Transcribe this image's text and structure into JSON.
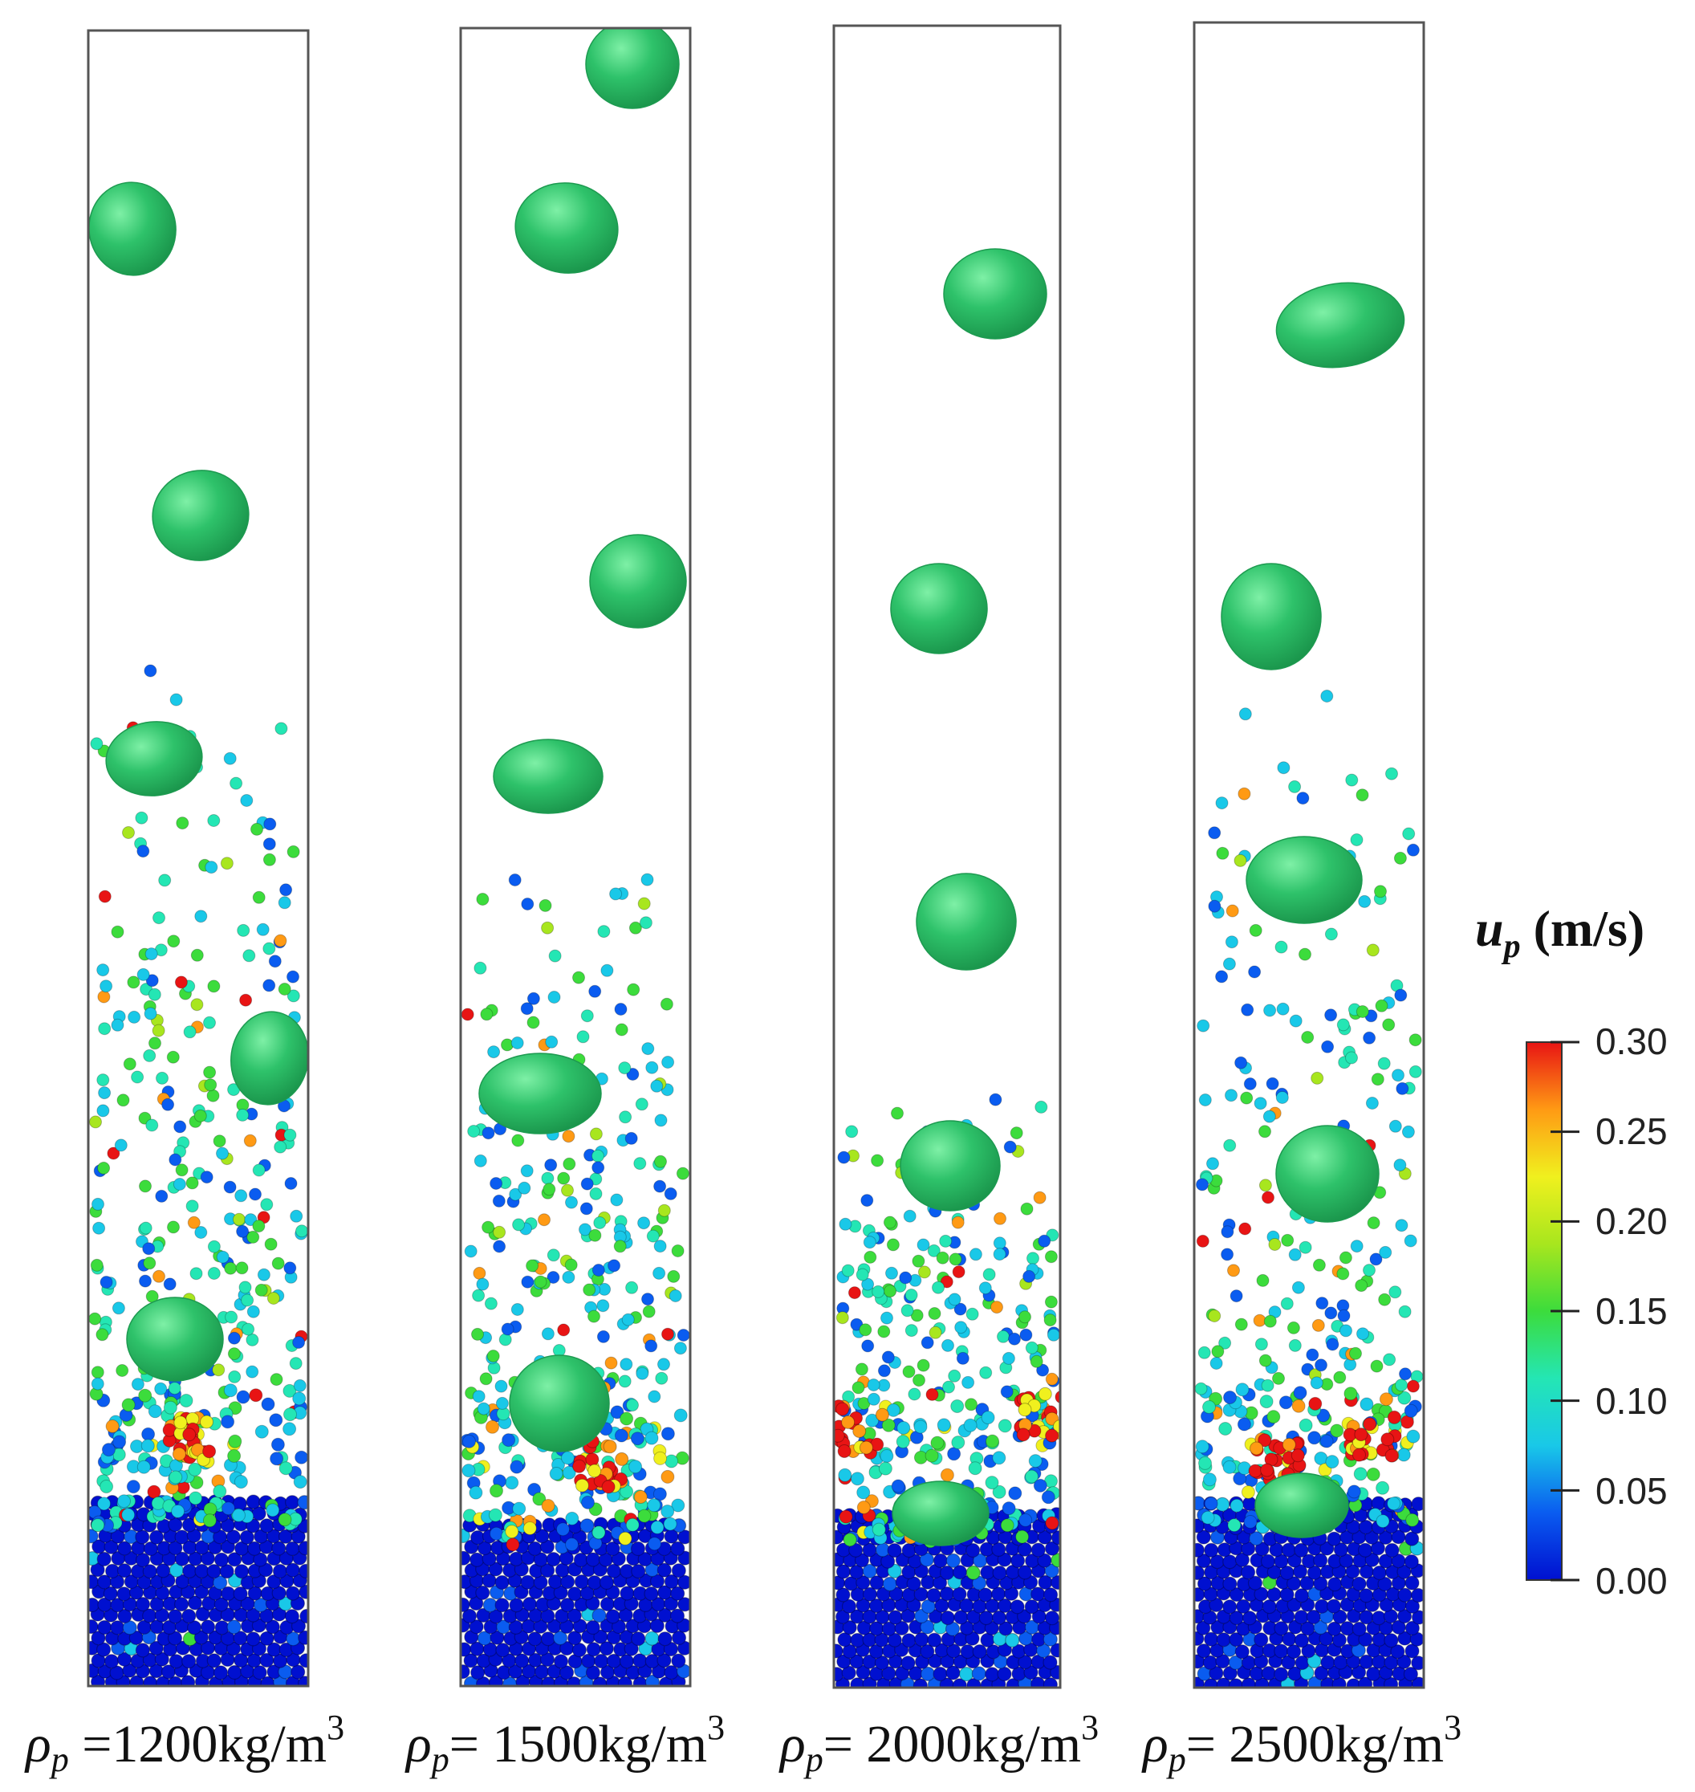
{
  "figure": {
    "description_free": true,
    "colors": {
      "bubble": "#2ec26a",
      "bubble_dark": "#1d9a50",
      "bubble_light": "#5fdc8f",
      "column_border": "#555555"
    }
  },
  "legend": {
    "title_symbol": "u",
    "title_subscript": "p",
    "title_unit": " (m/s)",
    "ticks": [
      "0.30",
      "0.25",
      "0.20",
      "0.15",
      "0.10",
      "0.05",
      "0.00"
    ],
    "min": 0.0,
    "max": 0.3,
    "colormap": [
      "#0010d0",
      "#0a5cf0",
      "#19c8e8",
      "#24e6b4",
      "#3cdc3c",
      "#a8e61e",
      "#f0f01e",
      "#ff9a14",
      "#e81414"
    ]
  },
  "panels": [
    {
      "label_symbol": "ρ",
      "label_subscript": "p",
      "label_value": " =1200kg/m",
      "label_sup": "3",
      "density": 1200
    },
    {
      "label_symbol": "ρ",
      "label_subscript": "p",
      "label_value": "= 1500kg/m",
      "label_sup": "3",
      "density": 1500
    },
    {
      "label_symbol": "ρ",
      "label_subscript": "p",
      "label_value": "= 2000kg/m",
      "label_sup": "3",
      "density": 2000
    },
    {
      "label_symbol": "ρ",
      "label_subscript": "p",
      "label_value": "= 2500kg/m",
      "label_sup": "3",
      "density": 2500
    }
  ]
}
